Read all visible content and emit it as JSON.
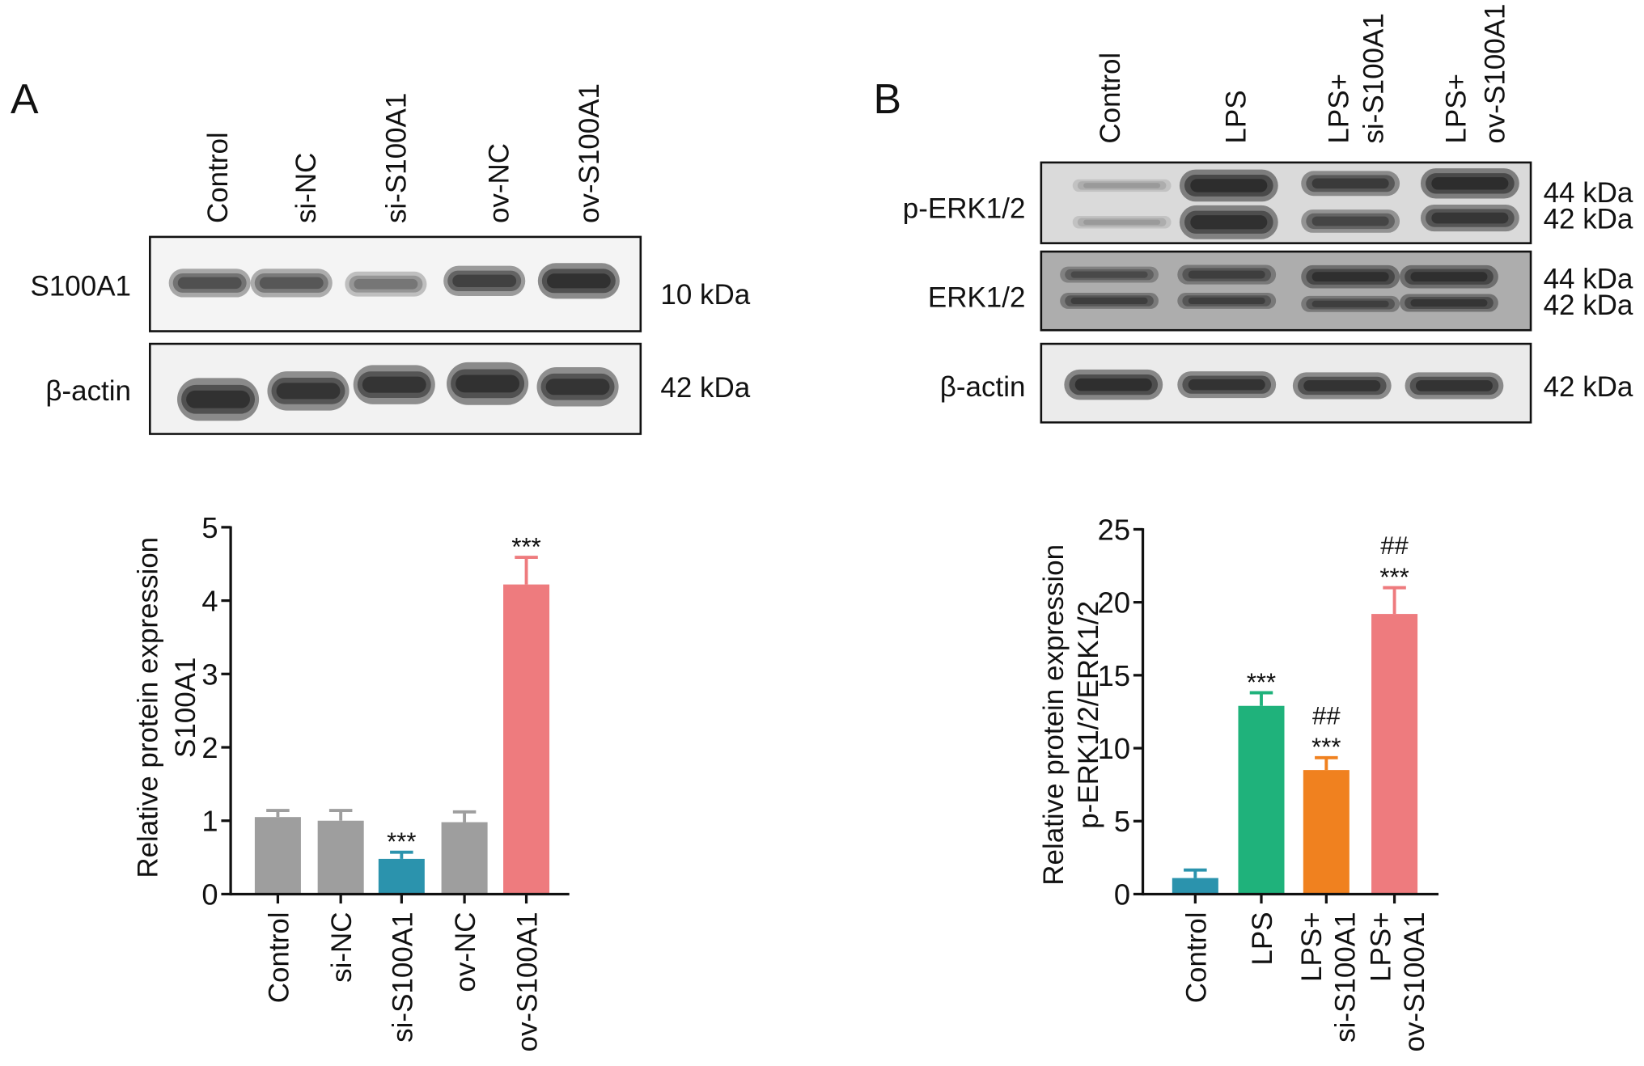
{
  "panel_labels": {
    "a": "A",
    "b": "B"
  },
  "blots": [
    {
      "lanes": [
        [
          "Control"
        ],
        [
          "si-NC"
        ],
        [
          "si-S100A1"
        ],
        [
          "ov-NC"
        ],
        [
          "ov-S100A1"
        ]
      ],
      "rows": [
        {
          "label": "S100A1",
          "markers": [
            "10 kDa"
          ],
          "band_intensity": [
            [
              0.72,
              0.68,
              0.5,
              0.85,
              1.0
            ]
          ]
        },
        {
          "label": "β-actin",
          "markers": [
            "42 kDa"
          ],
          "band_intensity": [
            [
              1.0,
              0.95,
              0.95,
              1.0,
              0.95
            ]
          ]
        }
      ]
    },
    {
      "lanes": [
        [
          "Control"
        ],
        [
          "LPS"
        ],
        [
          "LPS+",
          "si-S100A1"
        ],
        [
          "LPS+",
          "ov-S100A1"
        ]
      ],
      "rows": [
        {
          "label": "p-ERK1/2",
          "markers": [
            "44 kDa",
            "42 kDa"
          ],
          "band_intensity": [
            [
              0.25,
              1.0,
              0.85,
              1.0
            ],
            [
              0.25,
              0.95,
              0.75,
              0.9
            ]
          ]
        },
        {
          "label": "ERK1/2",
          "markers": [
            "44 kDa",
            "42 kDa"
          ],
          "band_intensity": [
            [
              0.6,
              0.7,
              0.85,
              0.85
            ],
            [
              0.7,
              0.7,
              0.7,
              0.8
            ]
          ]
        },
        {
          "label": "β-actin",
          "markers": [
            "42 kDa"
          ],
          "band_intensity": [
            [
              1.0,
              0.95,
              0.95,
              0.95
            ]
          ]
        }
      ]
    }
  ],
  "chart_data": [
    {
      "type": "bar",
      "categories": [
        [
          "Control"
        ],
        [
          "si-NC"
        ],
        [
          "si-S100A1"
        ],
        [
          "ov-NC"
        ],
        [
          "ov-S100A1"
        ]
      ],
      "values": [
        1.05,
        1.0,
        0.48,
        0.98,
        4.22
      ],
      "error": [
        0.09,
        0.14,
        0.09,
        0.14,
        0.37
      ],
      "significance": [
        [],
        [],
        [
          "***"
        ],
        [],
        [
          "***"
        ]
      ],
      "colors": [
        "#9e9e9e",
        "#9e9e9e",
        "#2b93ad",
        "#9e9e9e",
        "#ee7b7e"
      ],
      "title": "",
      "xlabel": "",
      "ylabel": [
        "Relative protein expression",
        "S100A1"
      ],
      "ylim": [
        0,
        5
      ],
      "yticks": [
        0,
        1,
        2,
        3,
        4,
        5
      ],
      "grid": false
    },
    {
      "type": "bar",
      "categories": [
        [
          "Control"
        ],
        [
          "LPS"
        ],
        [
          "LPS+",
          "si-S100A1"
        ],
        [
          "LPS+",
          "ov-S100A1"
        ]
      ],
      "values": [
        1.1,
        12.9,
        8.5,
        19.2
      ],
      "error": [
        0.55,
        0.9,
        0.85,
        1.8
      ],
      "significance": [
        [],
        [
          "***"
        ],
        [
          "##",
          "***"
        ],
        [
          "##",
          "***"
        ]
      ],
      "colors": [
        "#2b93ad",
        "#1fb27b",
        "#f0811f",
        "#ee7b7e"
      ],
      "title": "",
      "xlabel": "",
      "ylabel": [
        "Relative protein expression",
        "p-ERK1/2/ERK1/2"
      ],
      "ylim": [
        0,
        25
      ],
      "yticks": [
        0,
        5,
        10,
        15,
        20,
        25
      ],
      "grid": false
    }
  ]
}
